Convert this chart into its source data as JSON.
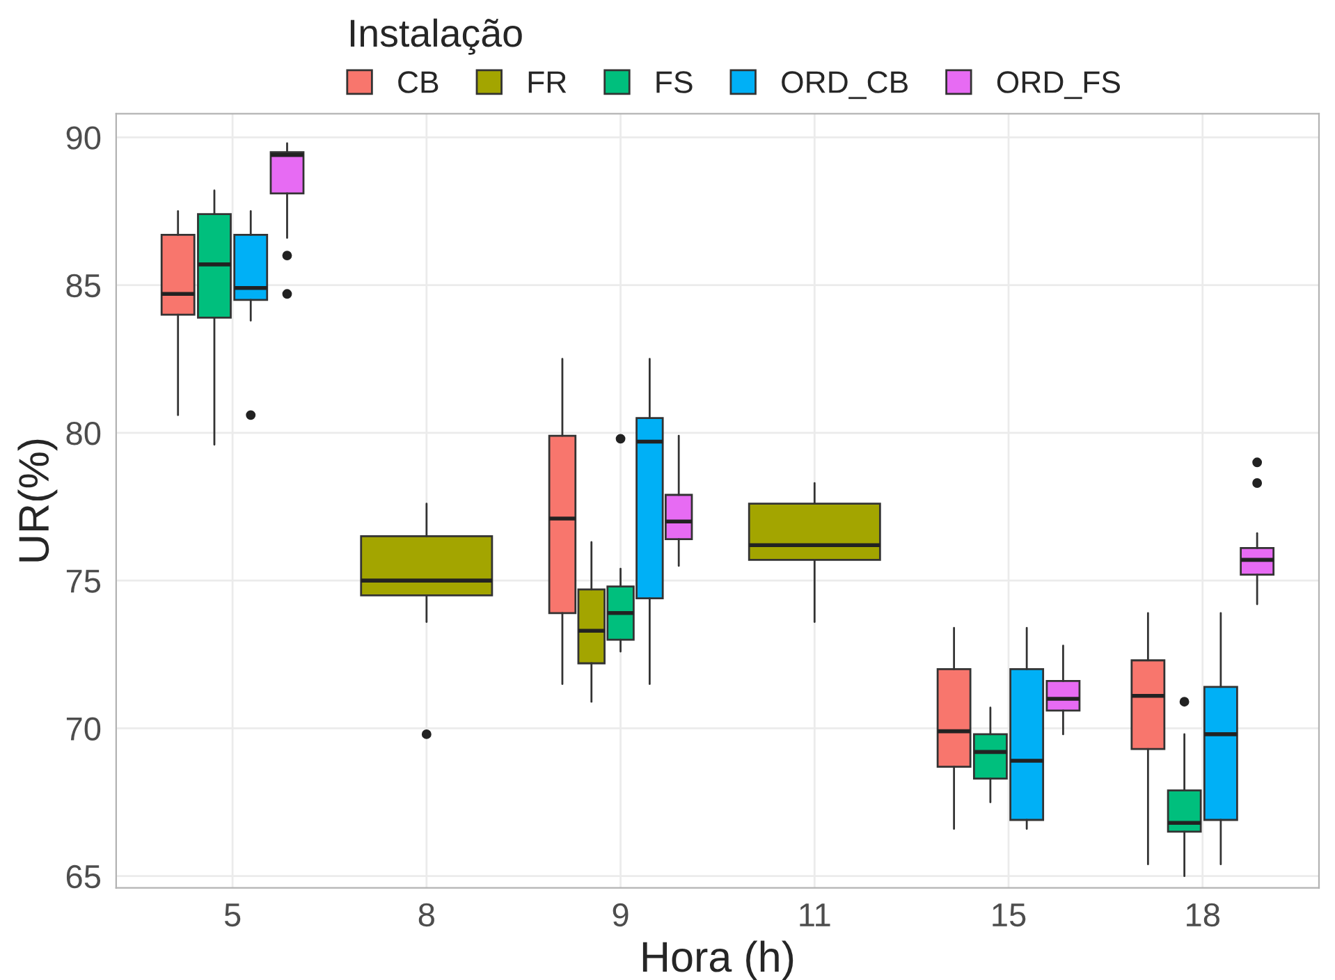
{
  "chart_data": {
    "type": "box",
    "xlabel": "Hora (h)",
    "ylabel": "UR(%)",
    "legend_title": "Instalação",
    "legend": "top",
    "grid": true,
    "categories": [
      "5",
      "8",
      "9",
      "11",
      "15",
      "18"
    ],
    "ylim": [
      64.6,
      90.8
    ],
    "yticks": [
      65,
      70,
      75,
      80,
      85,
      90
    ],
    "series": [
      {
        "name": "CB",
        "color": "#f8766d",
        "boxes": [
          {
            "low": 80.6,
            "q1": 84.0,
            "median": 84.7,
            "q3": 86.7,
            "high": 87.5
          },
          null,
          {
            "low": 71.5,
            "q1": 73.9,
            "median": 77.1,
            "q3": 79.9,
            "high": 82.5
          },
          null,
          {
            "low": 66.6,
            "q1": 68.7,
            "median": 69.9,
            "q3": 72.0,
            "high": 73.4
          },
          {
            "low": 65.4,
            "q1": 69.3,
            "median": 71.1,
            "q3": 72.3,
            "high": 73.9
          }
        ]
      },
      {
        "name": "FR",
        "color": "#a3a500",
        "boxes": [
          null,
          {
            "low": 73.6,
            "q1": 74.5,
            "median": 75.0,
            "q3": 76.5,
            "high": 77.6,
            "outliers": [
              69.8
            ]
          },
          {
            "low": 70.9,
            "q1": 72.2,
            "median": 73.3,
            "q3": 74.7,
            "high": 76.3
          },
          {
            "low": 73.6,
            "q1": 75.7,
            "median": 76.2,
            "q3": 77.6,
            "high": 78.3
          },
          null,
          null
        ]
      },
      {
        "name": "FS",
        "color": "#00bf7d",
        "boxes": [
          {
            "low": 79.6,
            "q1": 83.9,
            "median": 85.7,
            "q3": 87.4,
            "high": 88.2
          },
          null,
          {
            "low": 72.6,
            "q1": 73.0,
            "median": 73.9,
            "q3": 74.8,
            "high": 75.4,
            "outliers": [
              79.8
            ]
          },
          null,
          {
            "low": 67.5,
            "q1": 68.3,
            "median": 69.2,
            "q3": 69.8,
            "high": 70.7
          },
          {
            "low": 65.0,
            "q1": 66.5,
            "median": 66.8,
            "q3": 67.9,
            "high": 69.8,
            "outliers": [
              70.9
            ]
          }
        ]
      },
      {
        "name": "ORD_CB",
        "color": "#00b0f6",
        "boxes": [
          {
            "low": 83.8,
            "q1": 84.5,
            "median": 84.9,
            "q3": 86.7,
            "high": 87.5,
            "outliers": [
              80.6
            ]
          },
          null,
          {
            "low": 71.5,
            "q1": 74.4,
            "median": 79.7,
            "q3": 80.5,
            "high": 82.5
          },
          null,
          {
            "low": 66.6,
            "q1": 66.9,
            "median": 68.9,
            "q3": 72.0,
            "high": 73.4
          },
          {
            "low": 65.4,
            "q1": 66.9,
            "median": 69.8,
            "q3": 71.4,
            "high": 73.9
          }
        ]
      },
      {
        "name": "ORD_FS",
        "color": "#e76bf3",
        "boxes": [
          {
            "low": 86.6,
            "q1": 88.1,
            "median": 89.4,
            "q3": 89.5,
            "high": 89.8,
            "outliers": [
              86.0,
              84.7
            ]
          },
          null,
          {
            "low": 75.5,
            "q1": 76.4,
            "median": 77.0,
            "q3": 77.9,
            "high": 79.9
          },
          null,
          {
            "low": 69.8,
            "q1": 70.6,
            "median": 71.0,
            "q3": 71.6,
            "high": 72.8
          },
          {
            "low": 74.2,
            "q1": 75.2,
            "median": 75.7,
            "q3": 76.1,
            "high": 76.6,
            "outliers": [
              79.0,
              78.3
            ]
          }
        ]
      }
    ]
  }
}
